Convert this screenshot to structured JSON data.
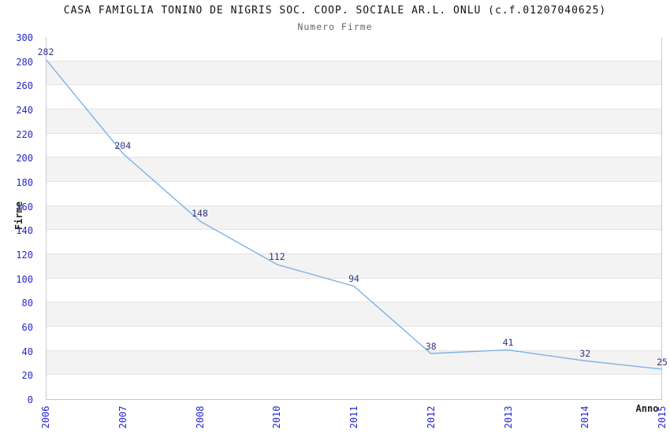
{
  "chart_data": {
    "type": "line",
    "title": "CASA FAMIGLIA TONINO DE NIGRIS SOC. COOP. SOCIALE AR.L. ONLU (c.f.01207040625)",
    "subtitle": "Numero Firme",
    "xlabel": "Anno",
    "ylabel": "Firme",
    "categories": [
      "2006",
      "2007",
      "2008",
      "2010",
      "2011",
      "2012",
      "2013",
      "2014",
      "2015"
    ],
    "values": [
      282,
      204,
      148,
      112,
      94,
      38,
      41,
      32,
      25
    ],
    "ylim": [
      0,
      300
    ],
    "ytick_step": 20,
    "ytick_labels": [
      "0",
      "20",
      "40",
      "60",
      "80",
      "100",
      "120",
      "140",
      "160",
      "180",
      "200",
      "220",
      "240",
      "260",
      "280",
      "300"
    ],
    "grid": "horizontal-gridlines-with-alternating-bands",
    "legend_position": "none",
    "style": {
      "line_color": "#7fb1e3",
      "point_label_color": "#333388",
      "tick_label_color": "#2626cd",
      "band_color": "#f3f3f3",
      "band_alt_color": "#ffffff",
      "gridline_color": "#e4e4e4",
      "plot_border_color": "#c9c9c9",
      "title_color": "#111111",
      "subtitle_color": "#666666",
      "axis_title_color": "#222222",
      "background_color": "#ffffff"
    }
  }
}
